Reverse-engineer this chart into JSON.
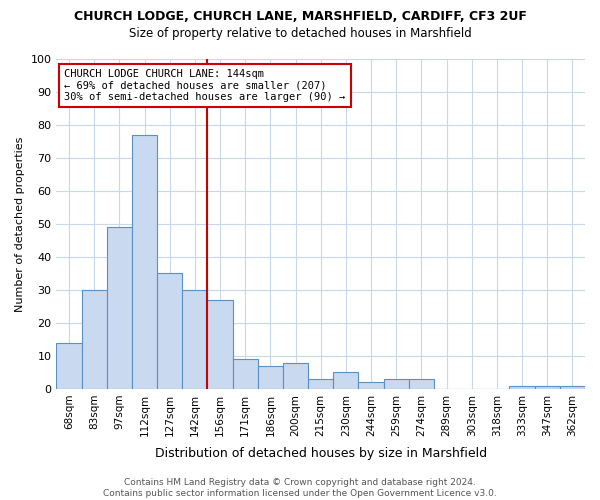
{
  "title": "CHURCH LODGE, CHURCH LANE, MARSHFIELD, CARDIFF, CF3 2UF",
  "subtitle": "Size of property relative to detached houses in Marshfield",
  "xlabel": "Distribution of detached houses by size in Marshfield",
  "ylabel": "Number of detached properties",
  "categories": [
    "68sqm",
    "83sqm",
    "97sqm",
    "112sqm",
    "127sqm",
    "142sqm",
    "156sqm",
    "171sqm",
    "186sqm",
    "200sqm",
    "215sqm",
    "230sqm",
    "244sqm",
    "259sqm",
    "274sqm",
    "289sqm",
    "303sqm",
    "318sqm",
    "333sqm",
    "347sqm",
    "362sqm"
  ],
  "values": [
    14,
    30,
    49,
    77,
    35,
    30,
    27,
    9,
    7,
    8,
    3,
    5,
    2,
    3,
    3,
    0,
    0,
    0,
    1,
    1,
    1
  ],
  "bar_color": "#c9d9f0",
  "bar_edge_color": "#5b90c3",
  "vline_x": 5.5,
  "vline_color": "#cc0000",
  "annotation_text": "CHURCH LODGE CHURCH LANE: 144sqm\n← 69% of detached houses are smaller (207)\n30% of semi-detached houses are larger (90) →",
  "annotation_box_color": "#ffffff",
  "annotation_box_edge_color": "#cc0000",
  "ylim": [
    0,
    100
  ],
  "yticks": [
    0,
    10,
    20,
    30,
    40,
    50,
    60,
    70,
    80,
    90,
    100
  ],
  "footer": "Contains HM Land Registry data © Crown copyright and database right 2024.\nContains public sector information licensed under the Open Government Licence v3.0.",
  "background_color": "#ffffff",
  "grid_color": "#c8d8e8"
}
